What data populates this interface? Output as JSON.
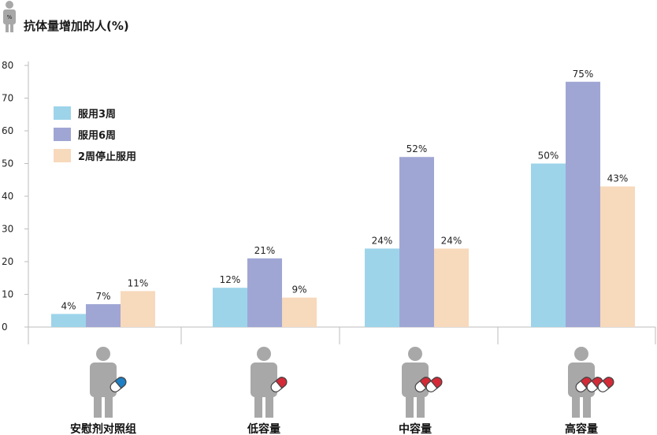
{
  "title": "抗体量增加的人(%)",
  "title_icon_label": "%",
  "colors": {
    "series": [
      "#9dd4ea",
      "#a0a6d4",
      "#f7d9bc"
    ],
    "axis": "#bdbdbd",
    "person": "#a8a8a8",
    "pill_blue": "#1e7fc4",
    "pill_red": "#d42a37"
  },
  "chart_data": {
    "type": "bar",
    "title": "抗体量增加的人(%)",
    "xlabel": "",
    "ylabel": "",
    "ylim": [
      0,
      80
    ],
    "yticks": [
      0,
      10,
      20,
      30,
      40,
      50,
      60,
      70,
      80
    ],
    "grid": false,
    "legend": "top-left",
    "categories": [
      "安慰剂对照组",
      "低容量",
      "中容量",
      "高容量"
    ],
    "category_icons": [
      "person-blue-pill-icon",
      "person-one-red-pill-icon",
      "person-two-red-pills-icon",
      "person-three-red-pills-icon"
    ],
    "series": [
      {
        "name": "服用3周",
        "values": [
          4,
          12,
          24,
          50
        ],
        "labels": [
          "4%",
          "12%",
          "24%",
          "50%"
        ]
      },
      {
        "name": "服用6周",
        "values": [
          7,
          21,
          52,
          75
        ],
        "labels": [
          "7%",
          "21%",
          "52%",
          "75%"
        ]
      },
      {
        "name": "2周停止服用",
        "values": [
          11,
          9,
          24,
          43
        ],
        "labels": [
          "11%",
          "9%",
          "24%",
          "43%"
        ]
      }
    ]
  }
}
